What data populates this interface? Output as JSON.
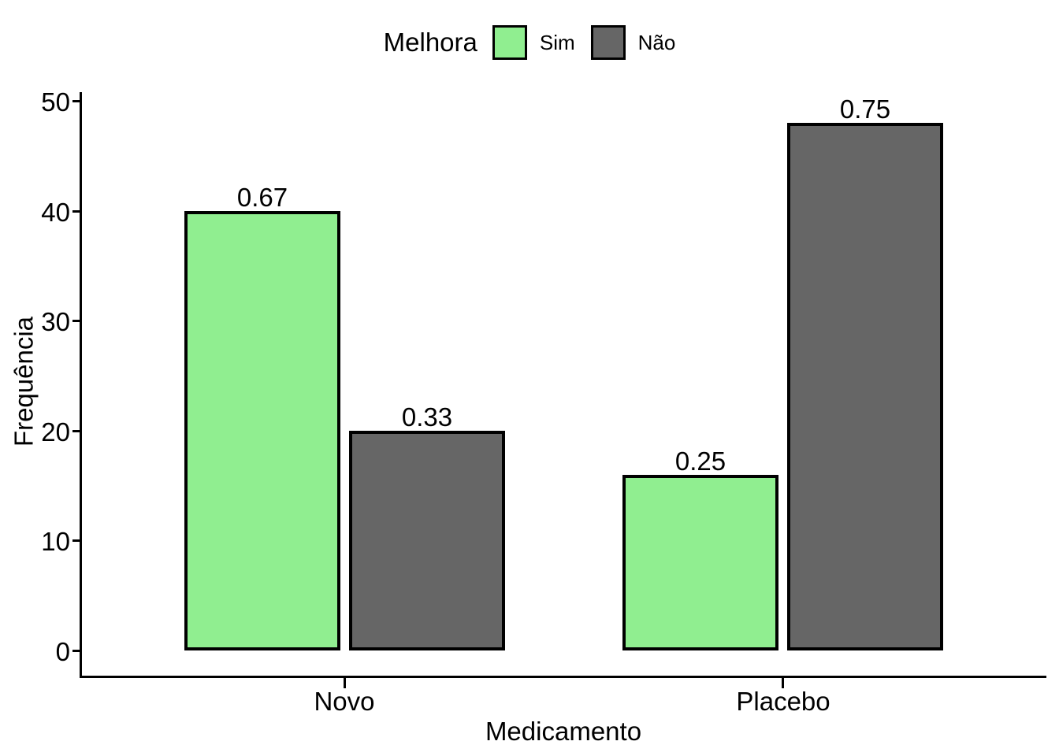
{
  "chart_data": {
    "type": "bar",
    "title": "",
    "legend_title": "Melhora",
    "legend_position": "top",
    "categories": [
      "Novo",
      "Placebo"
    ],
    "series": [
      {
        "name": "Sim",
        "color": "#90EE90",
        "values": [
          40,
          16
        ],
        "bar_labels": [
          "0.67",
          "0.25"
        ]
      },
      {
        "name": "Não",
        "color": "#666666",
        "values": [
          20,
          48
        ],
        "bar_labels": [
          "0.33",
          "0.75"
        ]
      }
    ],
    "xlabel": "Medicamento",
    "ylabel": "Frequência",
    "ylim": [
      0,
      50
    ],
    "yticks": [
      0,
      10,
      20,
      30,
      40,
      50
    ],
    "grid": false,
    "bar_outline_color": "#000000",
    "axis_color": "#000000",
    "background": "#FFFFFF"
  }
}
